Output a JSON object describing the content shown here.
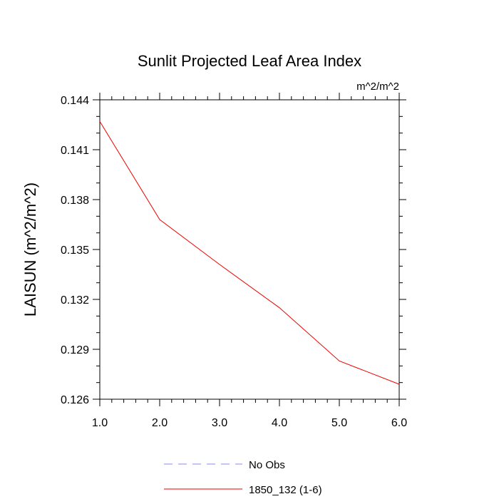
{
  "chart_data": {
    "type": "line",
    "title": "Sunlit Projected Leaf Area Index",
    "units_label": "m^2/m^2",
    "xlabel": "",
    "ylabel": "LAISUN  (m^2/m^2)",
    "xlim": [
      1.0,
      6.0
    ],
    "ylim": [
      0.126,
      0.144
    ],
    "x_ticks": [
      "1.0",
      "2.0",
      "3.0",
      "4.0",
      "5.0",
      "6.0"
    ],
    "y_ticks": [
      "0.126",
      "0.129",
      "0.132",
      "0.135",
      "0.138",
      "0.141",
      "0.144"
    ],
    "grid": false,
    "legend_position": "bottom",
    "series": [
      {
        "name": "No Obs",
        "color": "#8888ee",
        "dash": "dashed",
        "x": [],
        "y": []
      },
      {
        "name": "1850_132 (1-6)",
        "color": "#ee0000",
        "dash": "solid",
        "x": [
          1,
          2,
          3,
          4,
          5,
          6
        ],
        "y": [
          0.1427,
          0.1368,
          0.1341,
          0.1315,
          0.1283,
          0.1269
        ]
      }
    ]
  }
}
